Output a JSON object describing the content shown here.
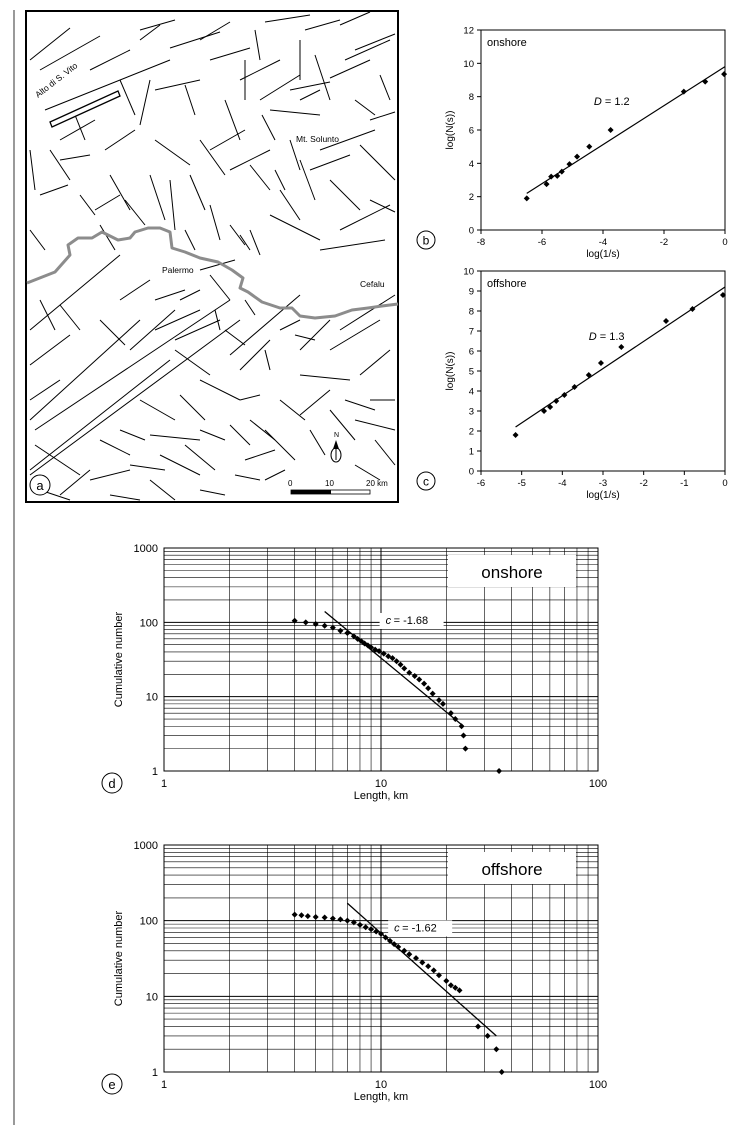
{
  "map": {
    "labels": {
      "alto": "Alto di S. Vito",
      "solunto": "Mt. Solunto",
      "palermo": "Palermo",
      "cefalu": "Cefalu"
    },
    "scale": {
      "zero": "0",
      "ten": "10",
      "twenty": "20 km"
    },
    "north": "N",
    "panel_label": "a"
  },
  "chart_data": [
    {
      "id": "b",
      "panel_label": "b",
      "type": "scatter",
      "annotation": "onshore",
      "d_symbol": "D",
      "d_value": "= 1.2",
      "xlabel": "log(1/s)",
      "ylabel": "log(N(s))",
      "xlim": [
        -8,
        0
      ],
      "ylim": [
        0,
        12
      ],
      "xticks": [
        "-8",
        "-6",
        "-4",
        "-2",
        "0"
      ],
      "yticks": [
        "0",
        "2",
        "4",
        "6",
        "8",
        "10",
        "12"
      ],
      "points": [
        [
          -6.5,
          1.9
        ],
        [
          -5.85,
          2.75
        ],
        [
          -5.7,
          3.2
        ],
        [
          -5.5,
          3.25
        ],
        [
          -5.35,
          3.5
        ],
        [
          -5.1,
          3.95
        ],
        [
          -4.85,
          4.4
        ],
        [
          -4.45,
          5.0
        ],
        [
          -3.75,
          6.0
        ],
        [
          -1.35,
          8.3
        ],
        [
          -0.65,
          8.9
        ],
        [
          -0.03,
          9.35
        ]
      ],
      "fit": [
        [
          -6.5,
          2.2
        ],
        [
          0,
          9.8
        ]
      ]
    },
    {
      "id": "c",
      "panel_label": "c",
      "type": "scatter",
      "annotation": "offshore",
      "d_symbol": "D",
      "d_value": "= 1.3",
      "xlabel": "log(1/s)",
      "ylabel": "log(N(s))",
      "xlim": [
        -6,
        0
      ],
      "ylim": [
        0,
        10
      ],
      "xticks": [
        "-6",
        "-5",
        "-4",
        "-3",
        "-2",
        "-1",
        "0"
      ],
      "yticks": [
        "0",
        "1",
        "2",
        "3",
        "4",
        "5",
        "6",
        "7",
        "8",
        "9",
        "10"
      ],
      "points": [
        [
          -5.15,
          1.8
        ],
        [
          -4.45,
          3.0
        ],
        [
          -4.3,
          3.2
        ],
        [
          -4.15,
          3.5
        ],
        [
          -3.95,
          3.8
        ],
        [
          -3.7,
          4.2
        ],
        [
          -3.35,
          4.8
        ],
        [
          -3.05,
          5.4
        ],
        [
          -2.55,
          6.2
        ],
        [
          -1.45,
          7.5
        ],
        [
          -0.8,
          8.1
        ],
        [
          -0.05,
          8.8
        ]
      ],
      "fit": [
        [
          -5.15,
          2.2
        ],
        [
          0,
          9.2
        ]
      ]
    },
    {
      "id": "d",
      "panel_label": "d",
      "type": "scatter",
      "legend": "onshore",
      "c_symbol": "c",
      "c_value": "= -1.68",
      "xlabel": "Length, km",
      "ylabel": "Cumulative number",
      "xscale": "log",
      "yscale": "log",
      "xlim": [
        1,
        100
      ],
      "ylim": [
        1,
        1000
      ],
      "xticks": [
        "1",
        "10",
        "100"
      ],
      "yticks": [
        "1",
        "10",
        "100",
        "1000"
      ],
      "points": [
        [
          4.0,
          105
        ],
        [
          4.5,
          100
        ],
        [
          5.0,
          95
        ],
        [
          5.5,
          90
        ],
        [
          6.0,
          85
        ],
        [
          6.5,
          77
        ],
        [
          7.0,
          72
        ],
        [
          7.5,
          65
        ],
        [
          7.8,
          60
        ],
        [
          8.1,
          56
        ],
        [
          8.4,
          52
        ],
        [
          8.7,
          49
        ],
        [
          9.0,
          46
        ],
        [
          9.4,
          43
        ],
        [
          9.8,
          41
        ],
        [
          10.3,
          38
        ],
        [
          10.8,
          35
        ],
        [
          11.3,
          33
        ],
        [
          11.8,
          30
        ],
        [
          12.3,
          27
        ],
        [
          12.8,
          24
        ],
        [
          13.5,
          21
        ],
        [
          14.3,
          19
        ],
        [
          15.0,
          17
        ],
        [
          15.8,
          15
        ],
        [
          16.5,
          13
        ],
        [
          17.3,
          11
        ],
        [
          18.5,
          9
        ],
        [
          19.3,
          8
        ],
        [
          21.0,
          6
        ],
        [
          22.0,
          5
        ],
        [
          23.5,
          4
        ],
        [
          24.0,
          3
        ],
        [
          24.5,
          2
        ],
        [
          35.0,
          1
        ]
      ],
      "fit": [
        [
          5.5,
          140
        ],
        [
          24,
          4
        ]
      ]
    },
    {
      "id": "e",
      "panel_label": "e",
      "type": "scatter",
      "legend": "offshore",
      "c_symbol": "c",
      "c_value": "= -1.62",
      "xlabel": "Length, km",
      "ylabel": "Cumulative number",
      "xscale": "log",
      "yscale": "log",
      "xlim": [
        1,
        100
      ],
      "ylim": [
        1,
        1000
      ],
      "xticks": [
        "1",
        "10",
        "100"
      ],
      "yticks": [
        "1",
        "10",
        "100",
        "1000"
      ],
      "points": [
        [
          4.0,
          120
        ],
        [
          4.3,
          118
        ],
        [
          4.6,
          115
        ],
        [
          5.0,
          112
        ],
        [
          5.5,
          110
        ],
        [
          6.0,
          107
        ],
        [
          6.5,
          104
        ],
        [
          7.0,
          100
        ],
        [
          7.5,
          95
        ],
        [
          8.0,
          88
        ],
        [
          8.5,
          82
        ],
        [
          9.0,
          77
        ],
        [
          9.5,
          72
        ],
        [
          10.0,
          67
        ],
        [
          10.5,
          60
        ],
        [
          11.0,
          54
        ],
        [
          11.5,
          49
        ],
        [
          12.0,
          45
        ],
        [
          12.8,
          40
        ],
        [
          13.5,
          36
        ],
        [
          14.5,
          32
        ],
        [
          15.5,
          28
        ],
        [
          16.5,
          25
        ],
        [
          17.5,
          22
        ],
        [
          18.5,
          19
        ],
        [
          20.0,
          16
        ],
        [
          21.0,
          14
        ],
        [
          22.0,
          13
        ],
        [
          23.0,
          12
        ],
        [
          28.0,
          4
        ],
        [
          31.0,
          3
        ],
        [
          34.0,
          2
        ],
        [
          36.0,
          1
        ]
      ],
      "fit": [
        [
          7,
          170
        ],
        [
          34,
          3
        ]
      ]
    }
  ]
}
